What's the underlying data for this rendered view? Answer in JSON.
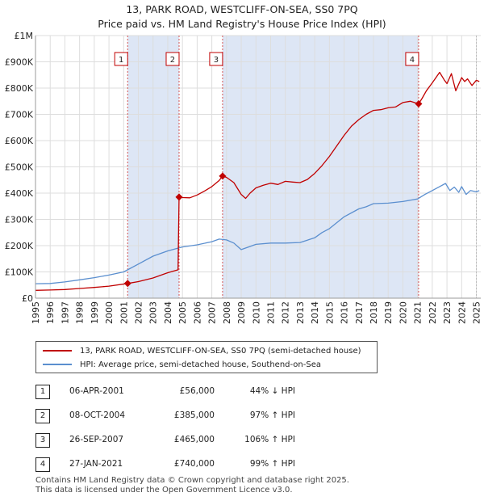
{
  "title": {
    "line1": "13, PARK ROAD, WESTCLIFF-ON-SEA, SS0 7PQ",
    "line2": "Price paid vs. HM Land Registry's House Price Index (HPI)"
  },
  "colors": {
    "property": "#c00000",
    "hpi": "#5b8fcf",
    "shade": "#dde6f5",
    "marker_line": "#d45555"
  },
  "chart_data": {
    "type": "line",
    "title": "Price paid vs. HM Land Registry's House Price Index (HPI)",
    "xlabel": "",
    "ylabel": "",
    "xlim": [
      1995,
      2025.3
    ],
    "ylim": [
      0,
      1000000
    ],
    "x_ticks": [
      1995,
      1996,
      1997,
      1998,
      1999,
      2000,
      2001,
      2002,
      2003,
      2004,
      2005,
      2006,
      2007,
      2008,
      2009,
      2010,
      2011,
      2012,
      2013,
      2014,
      2015,
      2016,
      2017,
      2018,
      2019,
      2020,
      2021,
      2022,
      2023,
      2024,
      2025
    ],
    "y_ticks": [
      {
        "value": 0,
        "label": "£0"
      },
      {
        "value": 100000,
        "label": "£100K"
      },
      {
        "value": 200000,
        "label": "£200K"
      },
      {
        "value": 300000,
        "label": "£300K"
      },
      {
        "value": 400000,
        "label": "£400K"
      },
      {
        "value": 500000,
        "label": "£500K"
      },
      {
        "value": 600000,
        "label": "£600K"
      },
      {
        "value": 700000,
        "label": "£700K"
      },
      {
        "value": 800000,
        "label": "£800K"
      },
      {
        "value": 900000,
        "label": "£900K"
      },
      {
        "value": 1000000,
        "label": "£1M"
      }
    ],
    "grid": true,
    "shaded_periods": [
      [
        2001.27,
        2004.77
      ],
      [
        2007.73,
        2021.07
      ]
    ],
    "series": [
      {
        "name": "13, PARK ROAD, WESTCLIFF-ON-SEA, SS0 7PQ (semi-detached house)",
        "x": [
          1995.0,
          1996.0,
          1997.0,
          1998.0,
          1999.0,
          2000.0,
          2001.27,
          2002.0,
          2003.0,
          2004.0,
          2004.7,
          2004.77,
          2005.0,
          2005.5,
          2006.0,
          2006.5,
          2007.0,
          2007.5,
          2007.73,
          2008.0,
          2008.5,
          2009.0,
          2009.3,
          2009.6,
          2010.0,
          2010.5,
          2011.0,
          2011.5,
          2012.0,
          2012.5,
          2013.0,
          2013.5,
          2014.0,
          2014.5,
          2015.0,
          2015.5,
          2016.0,
          2016.5,
          2017.0,
          2017.5,
          2018.0,
          2018.5,
          2019.0,
          2019.5,
          2020.0,
          2020.5,
          2021.07,
          2021.3,
          2021.6,
          2022.0,
          2022.5,
          2022.8,
          2023.0,
          2023.3,
          2023.6,
          2024.0,
          2024.2,
          2024.4,
          2024.7,
          2025.0,
          2025.2
        ],
        "values": [
          30000,
          31000,
          33000,
          37000,
          41000,
          46000,
          56000,
          63000,
          77000,
          97000,
          108000,
          385000,
          383000,
          382000,
          393000,
          408000,
          425000,
          448000,
          465000,
          460000,
          440000,
          395000,
          380000,
          400000,
          420000,
          430000,
          438000,
          433000,
          445000,
          442000,
          440000,
          452000,
          475000,
          505000,
          540000,
          580000,
          620000,
          655000,
          680000,
          700000,
          715000,
          718000,
          725000,
          728000,
          745000,
          750000,
          740000,
          760000,
          790000,
          820000,
          860000,
          832000,
          817000,
          855000,
          790000,
          840000,
          825000,
          835000,
          810000,
          830000,
          825000
        ],
        "color": "#c00000"
      },
      {
        "name": "HPI: Average price, semi-detached house, Southend-on-Sea",
        "x": [
          1995.0,
          1996.0,
          1997.0,
          1998.0,
          1999.0,
          2000.0,
          2001.0,
          2002.0,
          2003.0,
          2004.0,
          2005.0,
          2006.0,
          2007.0,
          2007.5,
          2008.0,
          2008.5,
          2009.0,
          2009.5,
          2010.0,
          2011.0,
          2012.0,
          2013.0,
          2014.0,
          2014.5,
          2015.0,
          2016.0,
          2017.0,
          2017.5,
          2018.0,
          2019.0,
          2020.0,
          2021.0,
          2021.5,
          2022.0,
          2022.5,
          2022.9,
          2023.2,
          2023.5,
          2023.8,
          2024.0,
          2024.3,
          2024.6,
          2025.0,
          2025.2
        ],
        "values": [
          55000,
          56000,
          62000,
          70000,
          78000,
          88000,
          100000,
          130000,
          160000,
          180000,
          195000,
          203000,
          215000,
          225000,
          222000,
          210000,
          185000,
          195000,
          205000,
          210000,
          210000,
          212000,
          230000,
          250000,
          265000,
          310000,
          340000,
          348000,
          360000,
          362000,
          368000,
          378000,
          395000,
          410000,
          425000,
          437000,
          410000,
          423000,
          403000,
          425000,
          395000,
          410000,
          405000,
          410000
        ],
        "color": "#5b8fcf"
      }
    ],
    "sale_markers": [
      {
        "label": "1",
        "x": 2001.27,
        "value": 56000
      },
      {
        "label": "2",
        "x": 2004.77,
        "value": 385000
      },
      {
        "label": "3",
        "x": 2007.73,
        "value": 465000
      },
      {
        "label": "4",
        "x": 2021.07,
        "value": 740000
      }
    ]
  },
  "legend": {
    "property_label": "13, PARK ROAD, WESTCLIFF-ON-SEA, SS0 7PQ (semi-detached house)",
    "hpi_label": "HPI: Average price, semi-detached house, Southend-on-Sea"
  },
  "sales": [
    {
      "num": "1",
      "date": "06-APR-2001",
      "price": "£56,000",
      "hpi": "44% ↓ HPI"
    },
    {
      "num": "2",
      "date": "08-OCT-2004",
      "price": "£385,000",
      "hpi": "97% ↑ HPI"
    },
    {
      "num": "3",
      "date": "26-SEP-2007",
      "price": "£465,000",
      "hpi": "106% ↑ HPI"
    },
    {
      "num": "4",
      "date": "27-JAN-2021",
      "price": "£740,000",
      "hpi": "99% ↑ HPI"
    }
  ],
  "footer": {
    "line1": "Contains HM Land Registry data © Crown copyright and database right 2025.",
    "line2": "This data is licensed under the Open Government Licence v3.0."
  }
}
